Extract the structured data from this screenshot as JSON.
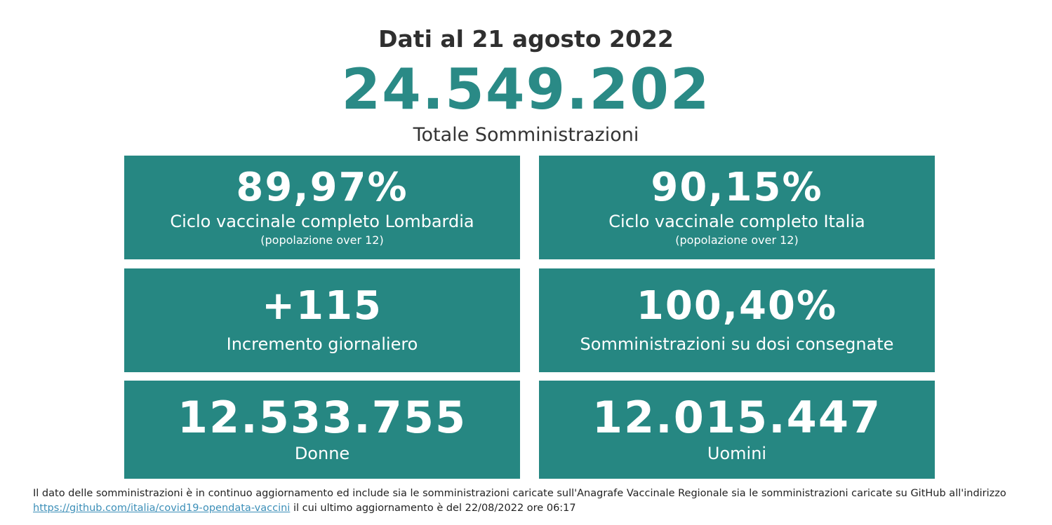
{
  "header": {
    "date_title": "Dati al 21 agosto 2022",
    "total_value": "24.549.202",
    "total_label": "Totale Somministrazioni"
  },
  "cards": [
    {
      "value": "89,97%",
      "label": "Ciclo vaccinale completo Lombardia",
      "sublabel": "(popolazione over 12)"
    },
    {
      "value": "90,15%",
      "label": "Ciclo vaccinale completo Italia",
      "sublabel": "(popolazione over 12)"
    },
    {
      "value": "+115",
      "label": "Incremento giornaliero"
    },
    {
      "value": "100,40%",
      "label": "Somministrazioni su dosi consegnate"
    },
    {
      "value": "12.533.755",
      "label": "Donne"
    },
    {
      "value": "12.015.447",
      "label": "Uomini"
    }
  ],
  "footnote": {
    "text_line1": "Il dato delle somministrazioni è in continuo aggiornamento ed include sia le somministrazioni caricate sull'Anagrafe Vaccinale Regionale sia le somministrazioni caricate su GitHub all'indirizzo",
    "link_text": "https://github.com/italia/covid19-opendata-vaccini",
    "text_line2": "il cui ultimo aggiornamento è del 22/08/2022 ore 06:17"
  },
  "colors": {
    "accent": "#2a8a86",
    "card_bg": "#268782",
    "link": "#3c8fb8"
  }
}
